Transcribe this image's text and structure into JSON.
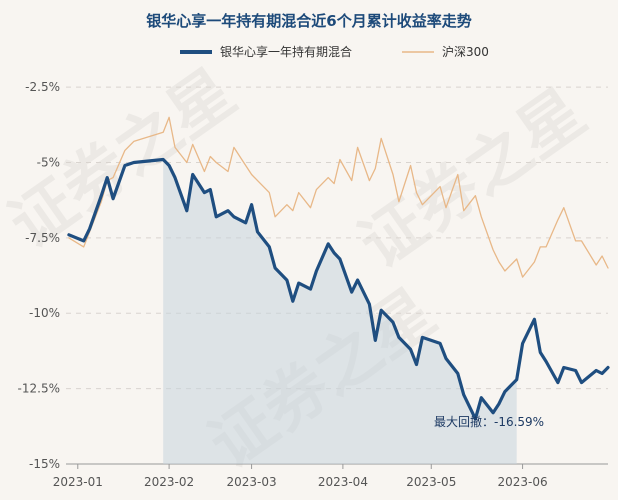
{
  "chart_data": {
    "type": "line",
    "title": "银华心享一年持有期混合近6个月累计收益率走势",
    "xlabel": "",
    "ylabel": "",
    "ylim": [
      -15,
      -1.8
    ],
    "yticks": [
      -2.5,
      -5,
      -7.5,
      -10,
      -12.5,
      -15
    ],
    "ytick_labels": [
      "-2.5%",
      "-5%",
      "-7.5%",
      "-10%",
      "-12.5%",
      "-15%"
    ],
    "xlim": [
      "2022-12-28",
      "2023-06-30"
    ],
    "xticks": [
      "2023-01-01",
      "2023-02-01",
      "2023-03-01",
      "2023-04-01",
      "2023-05-01",
      "2023-06-01"
    ],
    "xtick_labels": [
      "2023-01",
      "2023-02",
      "2023-03",
      "2023-04",
      "2023-05",
      "2023-06"
    ],
    "legend_position": "top-center",
    "watermark": "证券之星",
    "series": [
      {
        "name": "银华心享一年持有期混合",
        "color": "#1f4e80",
        "x": [
          "2022-12-29",
          "2023-01-03",
          "2023-01-05",
          "2023-01-09",
          "2023-01-11",
          "2023-01-13",
          "2023-01-17",
          "2023-01-20",
          "2023-01-30",
          "2023-02-01",
          "2023-02-03",
          "2023-02-07",
          "2023-02-09",
          "2023-02-13",
          "2023-02-15",
          "2023-02-17",
          "2023-02-21",
          "2023-02-23",
          "2023-02-27",
          "2023-03-01",
          "2023-03-03",
          "2023-03-07",
          "2023-03-09",
          "2023-03-13",
          "2023-03-15",
          "2023-03-17",
          "2023-03-21",
          "2023-03-23",
          "2023-03-27",
          "2023-03-29",
          "2023-03-31",
          "2023-04-04",
          "2023-04-06",
          "2023-04-10",
          "2023-04-12",
          "2023-04-14",
          "2023-04-18",
          "2023-04-20",
          "2023-04-24",
          "2023-04-26",
          "2023-04-28",
          "2023-05-04",
          "2023-05-06",
          "2023-05-10",
          "2023-05-12",
          "2023-05-16",
          "2023-05-18",
          "2023-05-22",
          "2023-05-24",
          "2023-05-26",
          "2023-05-30",
          "2023-06-01",
          "2023-06-05",
          "2023-06-07",
          "2023-06-09",
          "2023-06-13",
          "2023-06-15",
          "2023-06-19",
          "2023-06-21",
          "2023-06-26",
          "2023-06-28",
          "2023-06-30"
        ],
        "y": [
          -7.4,
          -7.6,
          -7.2,
          -6.1,
          -5.5,
          -6.2,
          -5.1,
          -5.0,
          -4.9,
          -5.1,
          -5.5,
          -6.6,
          -5.4,
          -6.0,
          -5.9,
          -6.8,
          -6.6,
          -6.8,
          -7.0,
          -6.4,
          -7.3,
          -7.8,
          -8.5,
          -8.9,
          -9.6,
          -9.0,
          -9.2,
          -8.6,
          -7.7,
          -8.0,
          -8.2,
          -9.3,
          -8.9,
          -9.7,
          -10.9,
          -9.9,
          -10.3,
          -10.8,
          -11.2,
          -11.7,
          -10.8,
          -11.0,
          -11.5,
          -12.0,
          -12.7,
          -13.5,
          -12.8,
          -13.3,
          -13.0,
          -12.6,
          -12.2,
          -11.0,
          -10.2,
          -11.3,
          -11.6,
          -12.3,
          -11.8,
          -11.9,
          -12.3,
          -11.9,
          -12.0,
          -11.8
        ]
      },
      {
        "name": "沪深300",
        "color": "#e8b888",
        "x": [
          "2022-12-29",
          "2023-01-03",
          "2023-01-05",
          "2023-01-09",
          "2023-01-11",
          "2023-01-13",
          "2023-01-17",
          "2023-01-20",
          "2023-01-30",
          "2023-02-01",
          "2023-02-03",
          "2023-02-07",
          "2023-02-09",
          "2023-02-13",
          "2023-02-15",
          "2023-02-17",
          "2023-02-21",
          "2023-02-23",
          "2023-02-27",
          "2023-03-01",
          "2023-03-03",
          "2023-03-07",
          "2023-03-09",
          "2023-03-13",
          "2023-03-15",
          "2023-03-17",
          "2023-03-21",
          "2023-03-23",
          "2023-03-27",
          "2023-03-29",
          "2023-03-31",
          "2023-04-04",
          "2023-04-06",
          "2023-04-10",
          "2023-04-12",
          "2023-04-14",
          "2023-04-18",
          "2023-04-20",
          "2023-04-24",
          "2023-04-26",
          "2023-04-28",
          "2023-05-04",
          "2023-05-06",
          "2023-05-10",
          "2023-05-12",
          "2023-05-16",
          "2023-05-18",
          "2023-05-22",
          "2023-05-24",
          "2023-05-26",
          "2023-05-30",
          "2023-06-01",
          "2023-06-05",
          "2023-06-07",
          "2023-06-09",
          "2023-06-13",
          "2023-06-15",
          "2023-06-19",
          "2023-06-21",
          "2023-06-26",
          "2023-06-28",
          "2023-06-30"
        ],
        "y": [
          -7.5,
          -7.8,
          -7.3,
          -6.3,
          -5.6,
          -5.5,
          -4.6,
          -4.3,
          -4.0,
          -3.5,
          -4.5,
          -5.0,
          -4.4,
          -5.3,
          -4.8,
          -5.0,
          -5.3,
          -4.5,
          -5.1,
          -5.4,
          -5.6,
          -6.0,
          -6.8,
          -6.4,
          -6.6,
          -6.0,
          -6.5,
          -5.9,
          -5.5,
          -5.7,
          -4.9,
          -5.6,
          -4.5,
          -5.6,
          -5.2,
          -4.2,
          -5.4,
          -6.3,
          -5.1,
          -6.0,
          -6.4,
          -5.8,
          -6.5,
          -5.4,
          -6.6,
          -6.1,
          -6.8,
          -7.9,
          -8.3,
          -8.6,
          -8.2,
          -8.8,
          -8.3,
          -7.8,
          -7.8,
          -6.9,
          -6.5,
          -7.6,
          -7.6,
          -8.4,
          -8.1,
          -8.5
        ]
      }
    ],
    "max_drawdown": {
      "label": "最大回撤：-16.59%",
      "start": "2023-01-30",
      "end": "2023-05-30"
    }
  }
}
